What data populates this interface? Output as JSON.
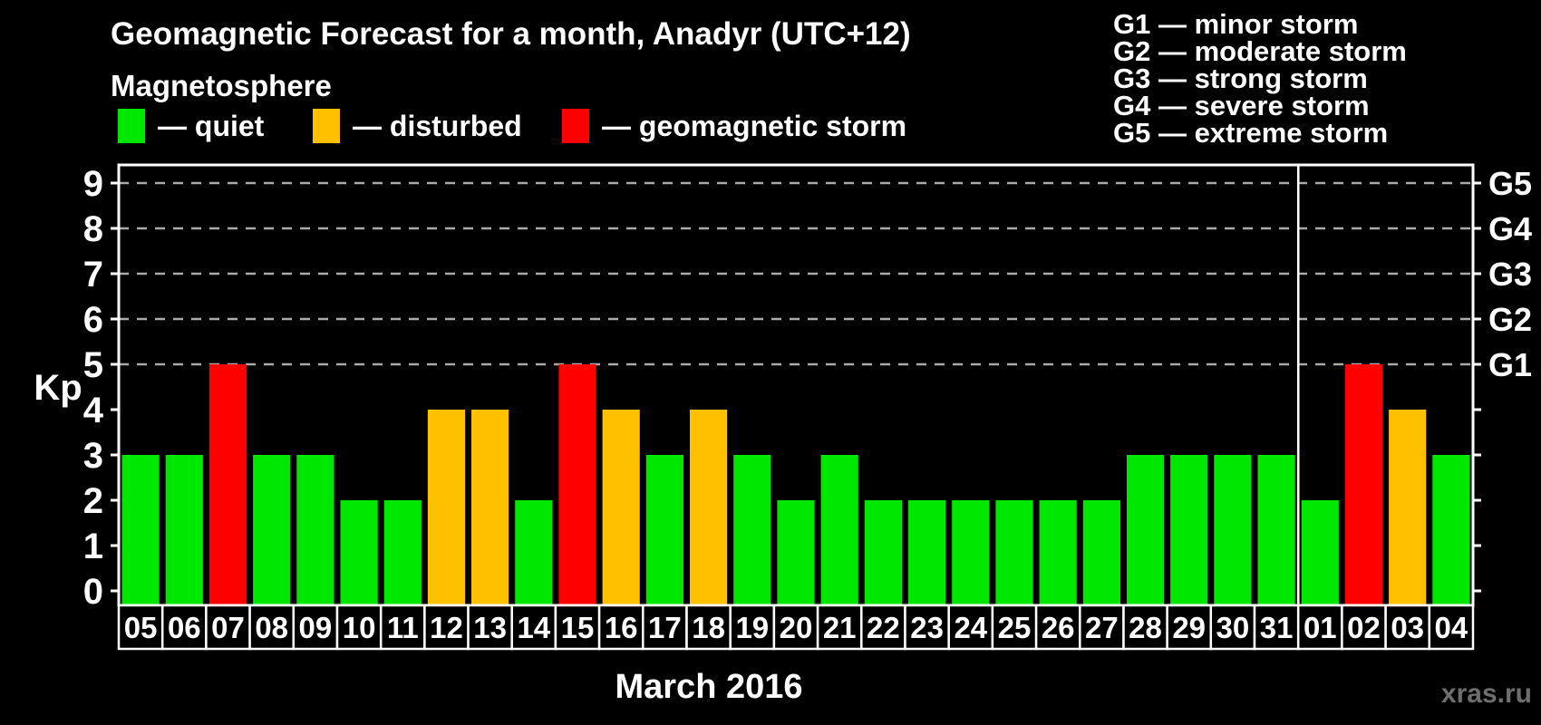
{
  "header": {
    "title": "Geomagnetic Forecast for a month, Anadyr (UTC+12)",
    "subtitle": "Magnetosphere"
  },
  "legend": {
    "items": [
      {
        "name": "quiet",
        "label": "— quiet",
        "color": "#00e800"
      },
      {
        "name": "disturbed",
        "label": "— disturbed",
        "color": "#ffc000"
      },
      {
        "name": "storm",
        "label": "— geomagnetic storm",
        "color": "#ff0000"
      }
    ]
  },
  "storm_scale_legend": {
    "items": [
      "G1 — minor storm",
      "G2 — moderate storm",
      "G3 — strong storm",
      "G4 — severe storm",
      "G5 — extreme storm"
    ]
  },
  "watermark": "xras.ru",
  "chart_data": {
    "type": "bar",
    "title": "Geomagnetic Forecast for a month, Anadyr (UTC+12)",
    "xlabel": "March 2016",
    "ylabel": "Kp",
    "ylim": [
      0,
      9
    ],
    "yticks": [
      0,
      1,
      2,
      3,
      4,
      5,
      6,
      7,
      8,
      9
    ],
    "gridlines_at": [
      5,
      6,
      7,
      8,
      9
    ],
    "grid": "dashed-horizontal",
    "legend_position": "top-left",
    "right_axis_labels": [
      {
        "kp": 5,
        "label": "G1"
      },
      {
        "kp": 6,
        "label": "G2"
      },
      {
        "kp": 7,
        "label": "G3"
      },
      {
        "kp": 8,
        "label": "G4"
      },
      {
        "kp": 9,
        "label": "G5"
      }
    ],
    "categories": [
      "05",
      "06",
      "07",
      "08",
      "09",
      "10",
      "11",
      "12",
      "13",
      "14",
      "15",
      "16",
      "17",
      "18",
      "19",
      "20",
      "21",
      "22",
      "23",
      "24",
      "25",
      "26",
      "27",
      "28",
      "29",
      "30",
      "31",
      "01",
      "02",
      "03",
      "04"
    ],
    "values": [
      3,
      3,
      5,
      3,
      3,
      2,
      2,
      4,
      4,
      2,
      5,
      4,
      3,
      4,
      3,
      2,
      3,
      2,
      2,
      2,
      2,
      2,
      2,
      3,
      3,
      3,
      3,
      2,
      5,
      4,
      3
    ],
    "statuses": [
      "quiet",
      "quiet",
      "storm",
      "quiet",
      "quiet",
      "quiet",
      "quiet",
      "disturbed",
      "disturbed",
      "quiet",
      "storm",
      "disturbed",
      "quiet",
      "disturbed",
      "quiet",
      "quiet",
      "quiet",
      "quiet",
      "quiet",
      "quiet",
      "quiet",
      "quiet",
      "quiet",
      "quiet",
      "quiet",
      "quiet",
      "quiet",
      "quiet",
      "storm",
      "disturbed",
      "quiet"
    ],
    "colors": {
      "quiet": "#00e800",
      "disturbed": "#ffc000",
      "storm": "#ff0000"
    },
    "month_separator_after_index": 26
  }
}
